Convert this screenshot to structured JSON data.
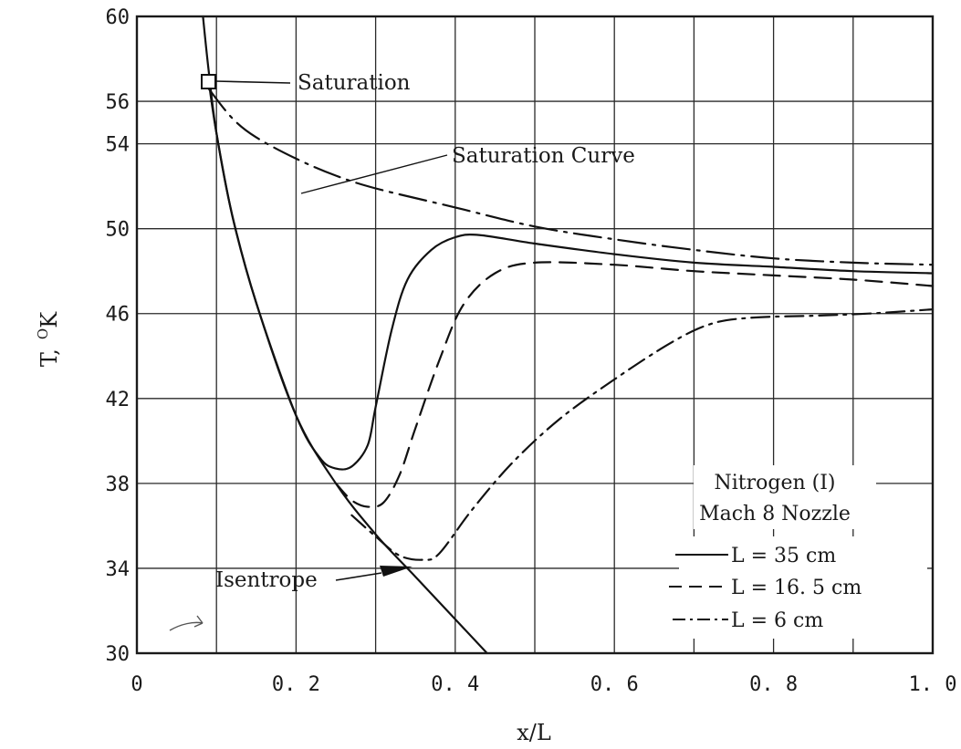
{
  "chart_data": {
    "type": "line",
    "title": "",
    "xlabel": "x/L",
    "ylabel_main": "T,",
    "ylabel_sup": "O",
    "ylabel_unit": "K",
    "xlim": [
      0,
      1.0
    ],
    "ylim": [
      30,
      60
    ],
    "x_ticks": [
      0,
      0.2,
      0.4,
      0.6,
      0.8,
      1.0
    ],
    "x_tick_labels": [
      "0",
      "0. 2",
      "0. 4",
      "0. 6",
      "0. 8",
      "1. 0"
    ],
    "y_ticks": [
      30,
      34,
      38,
      42,
      46,
      50,
      54,
      56,
      60
    ],
    "y_tick_labels": [
      "30",
      "34",
      "38",
      "42",
      "46",
      "50",
      "54",
      "56",
      "60"
    ],
    "x_grid": [
      0,
      0.1,
      0.2,
      0.3,
      0.4,
      0.5,
      0.6,
      0.7,
      0.8,
      0.9,
      1.0
    ],
    "y_grid": [
      30,
      34,
      38,
      42,
      46,
      50,
      54,
      56,
      60
    ],
    "grid": true,
    "legend": {
      "position": "lower-right",
      "title_lines": [
        "Nitrogen (I)",
        "Mach 8 Nozzle"
      ],
      "entries": [
        {
          "label": "L = 35 cm",
          "style": "solid"
        },
        {
          "label": "L = 16. 5 cm",
          "style": "dashed"
        },
        {
          "label": "L = 6 cm",
          "style": "dashdot"
        }
      ]
    },
    "annotations": {
      "saturation_point": {
        "label": "Saturation",
        "x": 0.09,
        "y": 56.6
      },
      "saturation_curve": {
        "label": "Saturation Curve"
      },
      "isentrope": {
        "label": "Isentrope"
      }
    },
    "series": [
      {
        "name": "Isentrope",
        "style": "solid",
        "points": [
          [
            0.083,
            60
          ],
          [
            0.09,
            57.5
          ],
          [
            0.1,
            54.5
          ],
          [
            0.12,
            50.6
          ],
          [
            0.15,
            46.5
          ],
          [
            0.2,
            41.2
          ],
          [
            0.25,
            38.0
          ],
          [
            0.3,
            35.6
          ],
          [
            0.35,
            33.6
          ],
          [
            0.4,
            31.6
          ],
          [
            0.44,
            30.0
          ]
        ]
      },
      {
        "name": "Saturation Curve",
        "style": "mixed",
        "points": [
          [
            0.09,
            56.6
          ],
          [
            0.12,
            55.2
          ],
          [
            0.15,
            54.3
          ],
          [
            0.2,
            53.3
          ],
          [
            0.25,
            52.5
          ],
          [
            0.3,
            51.9
          ],
          [
            0.4,
            51.0
          ],
          [
            0.5,
            50.1
          ],
          [
            0.6,
            49.5
          ],
          [
            0.7,
            49.0
          ],
          [
            0.8,
            48.6
          ],
          [
            0.9,
            48.4
          ],
          [
            1.0,
            48.3
          ]
        ]
      },
      {
        "name": "L = 35 cm",
        "style": "solid",
        "points": [
          [
            0.09,
            57.0
          ],
          [
            0.1,
            54.5
          ],
          [
            0.12,
            50.6
          ],
          [
            0.15,
            46.5
          ],
          [
            0.2,
            41.2
          ],
          [
            0.23,
            39.2
          ],
          [
            0.25,
            38.7
          ],
          [
            0.27,
            38.8
          ],
          [
            0.29,
            39.8
          ],
          [
            0.3,
            41.6
          ],
          [
            0.32,
            45.2
          ],
          [
            0.34,
            47.6
          ],
          [
            0.37,
            49.0
          ],
          [
            0.4,
            49.6
          ],
          [
            0.43,
            49.7
          ],
          [
            0.5,
            49.3
          ],
          [
            0.6,
            48.8
          ],
          [
            0.7,
            48.4
          ],
          [
            0.8,
            48.2
          ],
          [
            0.9,
            48.0
          ],
          [
            1.0,
            47.9
          ]
        ]
      },
      {
        "name": "L = 16. 5 cm",
        "style": "dashed",
        "points": [
          [
            0.25,
            38.0
          ],
          [
            0.27,
            37.2
          ],
          [
            0.29,
            36.9
          ],
          [
            0.31,
            37.1
          ],
          [
            0.33,
            38.4
          ],
          [
            0.35,
            40.6
          ],
          [
            0.38,
            43.8
          ],
          [
            0.41,
            46.4
          ],
          [
            0.45,
            47.9
          ],
          [
            0.5,
            48.4
          ],
          [
            0.6,
            48.3
          ],
          [
            0.7,
            48.0
          ],
          [
            0.8,
            47.8
          ],
          [
            0.9,
            47.6
          ],
          [
            1.0,
            47.3
          ]
        ]
      },
      {
        "name": "L = 6 cm",
        "style": "dashdot",
        "points": [
          [
            0.27,
            36.5
          ],
          [
            0.3,
            35.5
          ],
          [
            0.33,
            34.6
          ],
          [
            0.36,
            34.4
          ],
          [
            0.38,
            34.7
          ],
          [
            0.42,
            36.7
          ],
          [
            0.47,
            38.9
          ],
          [
            0.53,
            41.0
          ],
          [
            0.6,
            42.9
          ],
          [
            0.67,
            44.6
          ],
          [
            0.72,
            45.5
          ],
          [
            0.77,
            45.8
          ],
          [
            0.85,
            45.9
          ],
          [
            0.92,
            46.0
          ],
          [
            1.0,
            46.2
          ]
        ]
      }
    ]
  }
}
